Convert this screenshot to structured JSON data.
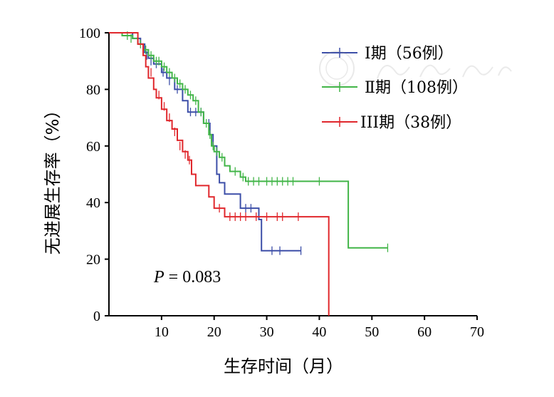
{
  "chart_data": {
    "type": "line",
    "subtype": "kaplan-meier",
    "xlabel": "生存时间（月）",
    "ylabel": "无进展生存率（%）",
    "xlim": [
      0,
      70
    ],
    "ylim": [
      0,
      100
    ],
    "x_ticks": [
      "10",
      "20",
      "30",
      "40",
      "50",
      "60",
      "70"
    ],
    "y_ticks": [
      "0",
      "20",
      "40",
      "60",
      "80",
      "100"
    ],
    "grid": false,
    "legend_position": "top-right",
    "annotation": {
      "p_label": "P",
      "p_text": "= 0.083"
    },
    "series": [
      {
        "name": "Ⅰ期（56例）",
        "color": "#3d4fa8",
        "steps": [
          [
            0,
            100
          ],
          [
            4.5,
            100
          ],
          [
            4.5,
            98
          ],
          [
            6,
            98
          ],
          [
            6,
            96
          ],
          [
            6.8,
            96
          ],
          [
            6.8,
            93
          ],
          [
            7.5,
            93
          ],
          [
            7.5,
            91
          ],
          [
            8.5,
            91
          ],
          [
            8.5,
            89
          ],
          [
            10,
            89
          ],
          [
            10,
            86
          ],
          [
            11,
            86
          ],
          [
            11,
            84
          ],
          [
            12.5,
            84
          ],
          [
            12.5,
            80
          ],
          [
            14,
            80
          ],
          [
            14,
            76
          ],
          [
            15,
            76
          ],
          [
            15,
            72
          ],
          [
            18,
            72
          ],
          [
            18,
            68
          ],
          [
            19.2,
            68
          ],
          [
            19.2,
            64
          ],
          [
            19.8,
            64
          ],
          [
            19.8,
            60
          ],
          [
            20.5,
            60
          ],
          [
            20.5,
            50
          ],
          [
            21,
            50
          ],
          [
            21,
            47
          ],
          [
            22,
            47
          ],
          [
            22,
            43
          ],
          [
            25,
            43
          ],
          [
            25,
            38
          ],
          [
            28.5,
            38
          ],
          [
            28.5,
            34
          ],
          [
            29,
            34
          ],
          [
            29,
            23
          ],
          [
            36.5,
            23
          ]
        ],
        "censored": [
          [
            7.2,
            92
          ],
          [
            8,
            90
          ],
          [
            9,
            89
          ],
          [
            10.3,
            86
          ],
          [
            11.5,
            83
          ],
          [
            13,
            80
          ],
          [
            15.5,
            72
          ],
          [
            16.5,
            72
          ],
          [
            17.5,
            72
          ],
          [
            19,
            68
          ],
          [
            26,
            38
          ],
          [
            27,
            38
          ],
          [
            31,
            23
          ],
          [
            32.5,
            23
          ],
          [
            36.5,
            23
          ]
        ]
      },
      {
        "name": "Ⅱ期（108例）",
        "color": "#42b548",
        "steps": [
          [
            0,
            100
          ],
          [
            2.5,
            100
          ],
          [
            2.5,
            99
          ],
          [
            4.5,
            99
          ],
          [
            4.5,
            98
          ],
          [
            5.5,
            98
          ],
          [
            5.5,
            96
          ],
          [
            6.5,
            96
          ],
          [
            6.5,
            94
          ],
          [
            7.5,
            94
          ],
          [
            7.5,
            92
          ],
          [
            8.5,
            92
          ],
          [
            8.5,
            90
          ],
          [
            10,
            90
          ],
          [
            10,
            88
          ],
          [
            11,
            88
          ],
          [
            11,
            86
          ],
          [
            12,
            86
          ],
          [
            12,
            84
          ],
          [
            13,
            84
          ],
          [
            13,
            82
          ],
          [
            14,
            82
          ],
          [
            14,
            80
          ],
          [
            15,
            80
          ],
          [
            15,
            78
          ],
          [
            16,
            78
          ],
          [
            16,
            76
          ],
          [
            17,
            76
          ],
          [
            17,
            72
          ],
          [
            18,
            72
          ],
          [
            18,
            68
          ],
          [
            19,
            68
          ],
          [
            19,
            64
          ],
          [
            19.5,
            64
          ],
          [
            19.5,
            60
          ],
          [
            20,
            60
          ],
          [
            20,
            58
          ],
          [
            21,
            58
          ],
          [
            21,
            56
          ],
          [
            22,
            56
          ],
          [
            22,
            53
          ],
          [
            23,
            53
          ],
          [
            23,
            51
          ],
          [
            25,
            51
          ],
          [
            25,
            49
          ],
          [
            26,
            49
          ],
          [
            26,
            47.5
          ],
          [
            45.5,
            47.5
          ],
          [
            45.5,
            24
          ],
          [
            53,
            24
          ]
        ],
        "censored": [
          [
            3.5,
            99
          ],
          [
            4.2,
            98
          ],
          [
            6,
            96
          ],
          [
            7,
            94
          ],
          [
            8,
            92
          ],
          [
            9,
            90
          ],
          [
            9.5,
            90
          ],
          [
            10.5,
            88
          ],
          [
            11.5,
            86
          ],
          [
            12.5,
            84
          ],
          [
            13.5,
            82
          ],
          [
            14.5,
            80
          ],
          [
            15.5,
            78
          ],
          [
            16.5,
            76
          ],
          [
            17.5,
            72
          ],
          [
            18.5,
            68
          ],
          [
            19.2,
            64
          ],
          [
            19.8,
            60
          ],
          [
            20.5,
            58
          ],
          [
            21.5,
            56
          ],
          [
            24,
            51
          ],
          [
            25.5,
            49
          ],
          [
            26.5,
            47.5
          ],
          [
            27.5,
            47.5
          ],
          [
            28.5,
            47.5
          ],
          [
            30,
            47.5
          ],
          [
            31,
            47.5
          ],
          [
            32,
            47.5
          ],
          [
            33,
            47.5
          ],
          [
            34,
            47.5
          ],
          [
            35,
            47.5
          ],
          [
            40,
            47.5
          ],
          [
            53,
            24
          ]
        ]
      },
      {
        "name": "III期（38例）",
        "color": "#e0272c",
        "steps": [
          [
            0,
            100
          ],
          [
            5.5,
            100
          ],
          [
            5.5,
            96
          ],
          [
            6.5,
            96
          ],
          [
            6.5,
            92
          ],
          [
            7,
            92
          ],
          [
            7,
            88
          ],
          [
            7.5,
            88
          ],
          [
            7.5,
            84
          ],
          [
            8.5,
            84
          ],
          [
            8.5,
            80
          ],
          [
            9,
            80
          ],
          [
            9,
            77
          ],
          [
            10,
            77
          ],
          [
            10,
            73
          ],
          [
            11,
            73
          ],
          [
            11,
            69
          ],
          [
            12,
            69
          ],
          [
            12,
            66
          ],
          [
            13,
            66
          ],
          [
            13,
            62
          ],
          [
            14,
            62
          ],
          [
            14,
            58
          ],
          [
            15,
            58
          ],
          [
            15,
            55
          ],
          [
            15.7,
            55
          ],
          [
            15.7,
            50
          ],
          [
            16.5,
            50
          ],
          [
            16.5,
            46
          ],
          [
            19,
            46
          ],
          [
            19,
            42
          ],
          [
            20,
            42
          ],
          [
            20,
            38
          ],
          [
            22,
            38
          ],
          [
            22,
            35
          ],
          [
            41.8,
            35
          ],
          [
            41.8,
            0
          ]
        ],
        "censored": [
          [
            8,
            86
          ],
          [
            9.5,
            78
          ],
          [
            10.5,
            74
          ],
          [
            11.5,
            70
          ],
          [
            12.5,
            65
          ],
          [
            13.5,
            60
          ],
          [
            14.5,
            57
          ],
          [
            15.3,
            55
          ],
          [
            21,
            38
          ],
          [
            23,
            35
          ],
          [
            24,
            35
          ],
          [
            25,
            35
          ],
          [
            26,
            35
          ],
          [
            28,
            35
          ],
          [
            30,
            35
          ],
          [
            32,
            35
          ],
          [
            33,
            35
          ],
          [
            36,
            35
          ]
        ]
      }
    ]
  }
}
